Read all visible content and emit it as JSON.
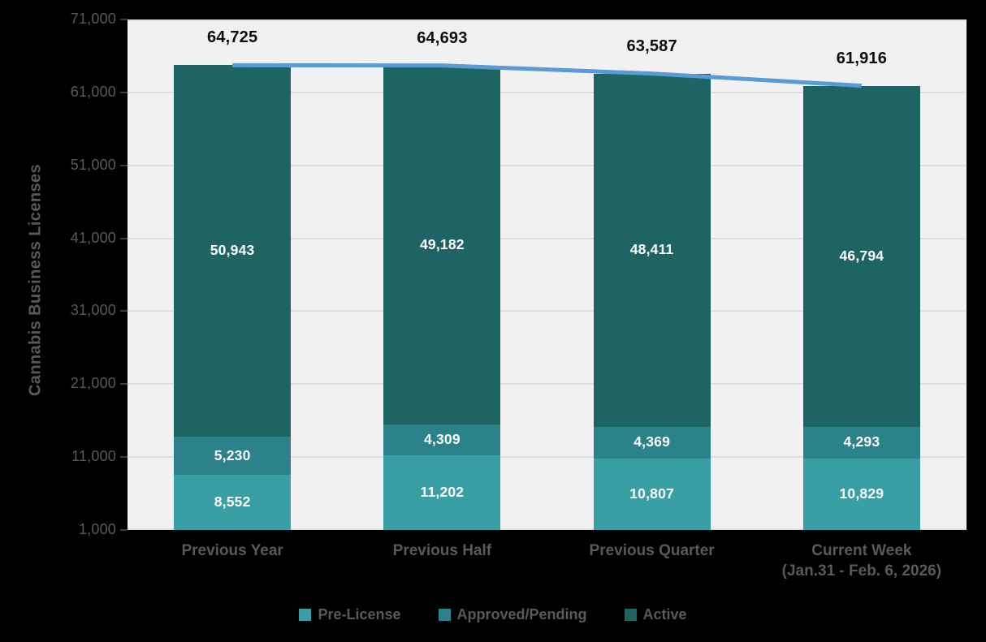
{
  "chart": {
    "outside_background": "#000000",
    "plot_background": "#F1F1F1",
    "gridline_color": "#DEDEDE",
    "tick_color": "#3B3B3B",
    "axis_text_color": "#595959",
    "total_label_color": "#0D0D0D",
    "value_label_color": "#FFFFFF"
  },
  "y_axis": {
    "title": "Cannabis Business Licenses",
    "tick_labels": [
      "71,000",
      "61,000",
      "51,000",
      "41,000",
      "31,000",
      "21,000",
      "11,000",
      "1,000"
    ],
    "min": 1000,
    "max": 71000,
    "step": 10000
  },
  "legend": {
    "items": [
      {
        "label": "Pre-License",
        "color": "#38A0A4"
      },
      {
        "label": "Approved/Pending",
        "color": "#2C828B"
      },
      {
        "label": "Active",
        "color": "#1E6462"
      }
    ]
  },
  "chart_data": {
    "type": "bar",
    "stacked": true,
    "title": "",
    "ylabel": "Cannabis Business Licenses",
    "ylim": [
      1000,
      71000
    ],
    "grid": "horizontal",
    "legend_position": "bottom",
    "categories": [
      "Previous Year",
      "Previous Half",
      "Previous Quarter",
      "Current Week\n(Jan.31 - Feb. 6, 2026)"
    ],
    "series": [
      {
        "name": "Pre-License",
        "color": "#38A0A4",
        "values": [
          8552,
          11202,
          10807,
          10829
        ]
      },
      {
        "name": "Approved/Pending",
        "color": "#2C828B",
        "values": [
          5230,
          4309,
          4369,
          4293
        ]
      },
      {
        "name": "Active",
        "color": "#1E6462",
        "values": [
          50943,
          49182,
          48411,
          46794
        ]
      }
    ],
    "line_series": {
      "name": "Total",
      "color": "#5B9BD5",
      "values": [
        64725,
        64693,
        63587,
        61916
      ]
    },
    "total_labels": [
      "64,725",
      "64,693",
      "63,587",
      "61,916"
    ]
  }
}
